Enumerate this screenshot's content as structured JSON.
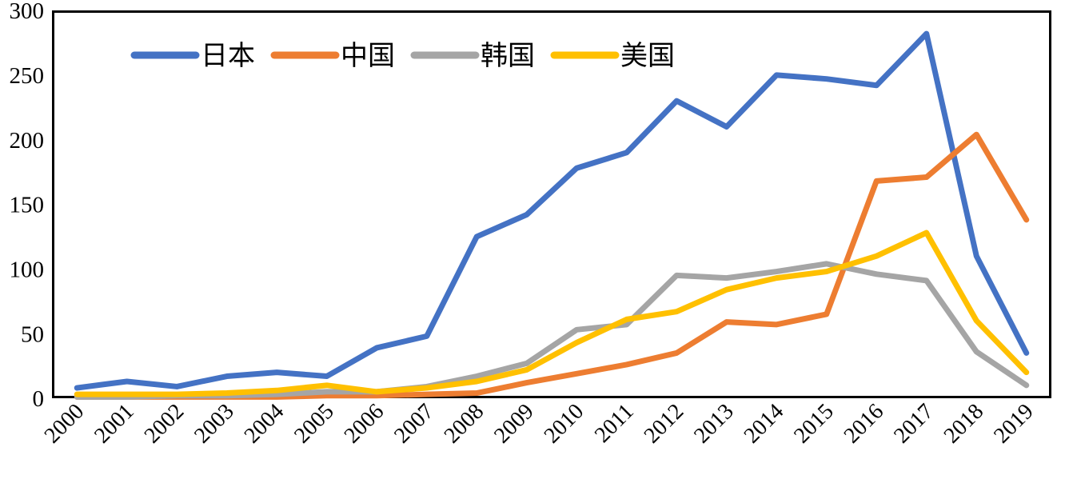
{
  "chart_data": {
    "type": "line",
    "title": "",
    "xlabel": "",
    "ylabel": "",
    "background": "#FFFFFF",
    "plot_border_color": "#000000",
    "grid": false,
    "legend_position": "top",
    "ylim": [
      0,
      300
    ],
    "yticks": [
      0,
      50,
      100,
      150,
      200,
      250,
      300
    ],
    "categories": [
      "2000",
      "2001",
      "2002",
      "2003",
      "2004",
      "2005",
      "2006",
      "2007",
      "2008",
      "2009",
      "2010",
      "2011",
      "2012",
      "2013",
      "2014",
      "2015",
      "2016",
      "2017",
      "2018",
      "2019"
    ],
    "series": [
      {
        "name": "日本",
        "color": "#4472C4",
        "values": [
          8,
          13,
          9,
          17,
          20,
          17,
          39,
          48,
          125,
          142,
          178,
          190,
          230,
          210,
          250,
          247,
          242,
          282,
          110,
          35
        ]
      },
      {
        "name": "中国",
        "color": "#ED7D31",
        "values": [
          1,
          1,
          1,
          1,
          1,
          2,
          2,
          3,
          4,
          12,
          19,
          26,
          35,
          59,
          57,
          65,
          168,
          171,
          204,
          138
        ]
      },
      {
        "name": "韩国",
        "color": "#A5A5A5",
        "values": [
          1,
          1,
          2,
          2,
          3,
          5,
          5,
          9,
          17,
          27,
          53,
          57,
          95,
          93,
          98,
          104,
          96,
          91,
          36,
          10
        ]
      },
      {
        "name": "美国",
        "color": "#FFC000",
        "values": [
          3,
          3,
          3,
          4,
          6,
          10,
          5,
          8,
          13,
          22,
          43,
          61,
          67,
          84,
          93,
          98,
          110,
          128,
          60,
          20
        ]
      }
    ]
  },
  "layout_hints": {
    "line_width": 7,
    "legend_swatch_width": 77
  }
}
